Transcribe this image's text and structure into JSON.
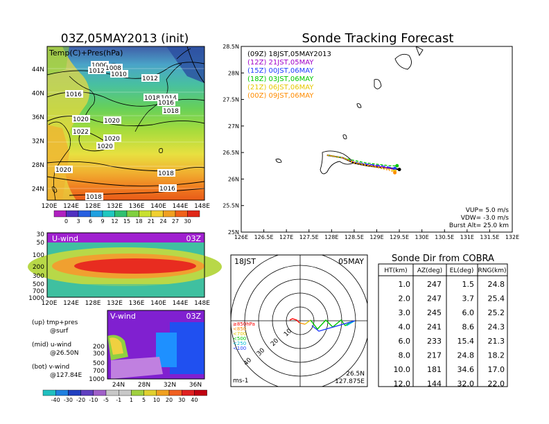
{
  "left": {
    "title": "03Z,05MAY2013 (init)",
    "map_label": "Temp(C)+Pres(hPa)",
    "lat_ticks": [
      "44N",
      "40N",
      "36N",
      "32N",
      "28N",
      "24N"
    ],
    "lon_ticks": [
      "120E",
      "124E",
      "128E",
      "132E",
      "136E",
      "140E",
      "144E",
      "148E"
    ],
    "pressure_labels": [
      "1006",
      "1008",
      "1012",
      "1010",
      "1012",
      "1018",
      "1014",
      "1016",
      "1018",
      "1016",
      "1020",
      "1020",
      "1022",
      "1020",
      "1020",
      "1020",
      "1018",
      "1016",
      "1018"
    ],
    "temp_colorbar": [
      "0",
      "3",
      "6",
      "9",
      "12",
      "15",
      "18",
      "21",
      "24",
      "27",
      "30"
    ],
    "uwind": {
      "label": "U-wind",
      "time": "03Z",
      "y_ticks": [
        "30",
        "50",
        "100",
        "200",
        "300",
        "500",
        "700",
        "1000"
      ]
    },
    "vwind": {
      "label": "V-wind",
      "time": "03Z",
      "y_ticks": [
        "200",
        "300",
        "500",
        "700",
        "1000"
      ],
      "lat_ticks": [
        "24N",
        "28N",
        "32N",
        "36N"
      ]
    },
    "wind_colorbar": [
      "-40",
      "-30",
      "-20",
      "-10",
      "-5",
      "-1",
      "1",
      "5",
      "10",
      "20",
      "30",
      "40"
    ],
    "notes": [
      {
        "a": "(up) tmp+pres",
        "b": "@surf"
      },
      {
        "a": "(mid) u-wind",
        "b": "@26.50N"
      },
      {
        "a": "(bot) v-wind",
        "b": "@127.84E"
      }
    ]
  },
  "track": {
    "title": "Sonde Tracking Forecast",
    "legend": [
      {
        "text": "(09Z)  18JST,05MAY2013",
        "color": "#000000"
      },
      {
        "text": "(12Z)  21JST,05MAY",
        "color": "#a000c8"
      },
      {
        "text": "(15Z)  00JST,06MAY",
        "color": "#1e3cff"
      },
      {
        "text": "(18Z)  03JST,06MAY",
        "color": "#00c800"
      },
      {
        "text": "(21Z)  06JST,06MAY",
        "color": "#e6c800"
      },
      {
        "text": "(00Z)  09JST,06MAY",
        "color": "#ff8c00"
      }
    ],
    "lat_ticks": [
      "28.5N",
      "28N",
      "27.5N",
      "27N",
      "26.5N",
      "26N",
      "25.5N",
      "25N"
    ],
    "lon_ticks": [
      "126E",
      "126.5E",
      "127E",
      "127.5E",
      "128E",
      "128.5E",
      "129E",
      "129.5E",
      "130E",
      "130.5E",
      "131E",
      "131.5E",
      "132E"
    ],
    "params": [
      "VUP=  5.0  m/s",
      "VDW= -3.0  m/s",
      "Burst Alt=  25.0  km"
    ]
  },
  "chart_data": {
    "type": "line",
    "title": "Sonde Tracking Forecast",
    "xlim": [
      126,
      132
    ],
    "ylim": [
      25,
      28.5
    ],
    "series": [
      {
        "name": "(09Z) 18JST,05MAY2013",
        "x": [
          127.9,
          128.25,
          128.5,
          128.8,
          129.1,
          129.35,
          129.5
        ],
        "y": [
          26.45,
          26.4,
          26.3,
          26.25,
          26.22,
          26.2,
          26.18
        ]
      },
      {
        "name": "(12Z) 21JST,05MAY",
        "x": [
          127.9,
          128.25,
          128.5,
          128.8,
          129.1,
          129.3,
          129.4
        ],
        "y": [
          26.45,
          26.4,
          26.32,
          26.27,
          26.23,
          26.2,
          26.18
        ]
      },
      {
        "name": "(15Z) 00JST,06MAY",
        "x": [
          127.9,
          128.25,
          128.5,
          128.8,
          129.1,
          129.3,
          129.4
        ],
        "y": [
          26.45,
          26.4,
          26.32,
          26.28,
          26.25,
          26.22,
          26.2
        ]
      },
      {
        "name": "(18Z) 03JST,06MAY",
        "x": [
          127.9,
          128.25,
          128.5,
          128.8,
          129.1,
          129.3,
          129.45
        ],
        "y": [
          26.45,
          26.4,
          26.35,
          26.3,
          26.27,
          26.25,
          26.25
        ]
      },
      {
        "name": "(21Z) 06JST,06MAY",
        "x": [
          127.9,
          128.25,
          128.5,
          128.8,
          129.1,
          129.3,
          129.4
        ],
        "y": [
          26.45,
          26.4,
          26.32,
          26.26,
          26.22,
          26.18,
          26.15
        ]
      },
      {
        "name": "(00Z) 09JST,06MAY",
        "x": [
          127.9,
          128.25,
          128.5,
          128.8,
          129.1,
          129.3,
          129.4
        ],
        "y": [
          26.45,
          26.4,
          26.3,
          26.25,
          26.2,
          26.16,
          26.12
        ]
      }
    ]
  },
  "polar": {
    "left_label": "18JST",
    "right_label": "05MAY",
    "units": "ms-1",
    "location_lat": "26.5N",
    "location_lon": "127.875E",
    "ring_labels": [
      "10",
      "20",
      "30",
      "40"
    ],
    "levels": [
      {
        "text": "≥850hPa",
        "color": "#ff0000"
      },
      {
        "text": "<850",
        "color": "#ff8c00"
      },
      {
        "text": "<700",
        "color": "#e6c800"
      },
      {
        "text": "<500",
        "color": "#00c800"
      },
      {
        "text": "<250",
        "color": "#00bcd4"
      },
      {
        "text": "<100",
        "color": "#1e3cff"
      }
    ]
  },
  "cobra": {
    "title": "Sonde Dir from COBRA",
    "headers": [
      "HT(km)",
      "AZ(deg)",
      "EL(deg)",
      "RNG(km)"
    ],
    "rows": [
      [
        "1.0",
        "247",
        "1.5",
        "24.8"
      ],
      [
        "2.0",
        "247",
        "3.7",
        "25.4"
      ],
      [
        "3.0",
        "245",
        "6.0",
        "25.2"
      ],
      [
        "4.0",
        "241",
        "8.6",
        "24.3"
      ],
      [
        "6.0",
        "233",
        "15.4",
        "21.3"
      ],
      [
        "8.0",
        "217",
        "24.8",
        "18.2"
      ],
      [
        "10.0",
        "181",
        "34.6",
        "17.0"
      ],
      [
        "12.0",
        "144",
        "32.0",
        "22.0"
      ]
    ]
  }
}
